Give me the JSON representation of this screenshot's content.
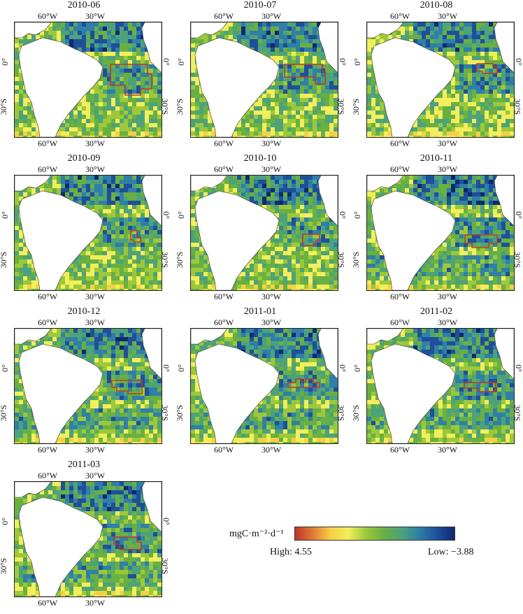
{
  "figure": {
    "axis_labels": {
      "top_left": "60°W",
      "top_right": "30°W",
      "bottom_left": "60°W",
      "bottom_right": "30°W",
      "lat_equator": "0°",
      "lat_south": "30°S"
    },
    "panels": [
      {
        "title": "2010-06"
      },
      {
        "title": "2010-07"
      },
      {
        "title": "2010-08"
      },
      {
        "title": "2010-09"
      },
      {
        "title": "2010-10"
      },
      {
        "title": "2010-11"
      },
      {
        "title": "2010-12"
      },
      {
        "title": "2011-01"
      },
      {
        "title": "2011-02"
      },
      {
        "title": "2011-03"
      }
    ]
  },
  "legend": {
    "unit_label": "mgC·m⁻²·d⁻¹",
    "high_label": "High: 4.55",
    "low_label": "Low: −3.88",
    "colors": [
      "#c0332a",
      "#e07a38",
      "#f5d046",
      "#f2ee5c",
      "#9cc93a",
      "#69b042",
      "#4da27a",
      "#2f7fa8",
      "#1f4f9a",
      "#0d2a6e"
    ]
  }
}
